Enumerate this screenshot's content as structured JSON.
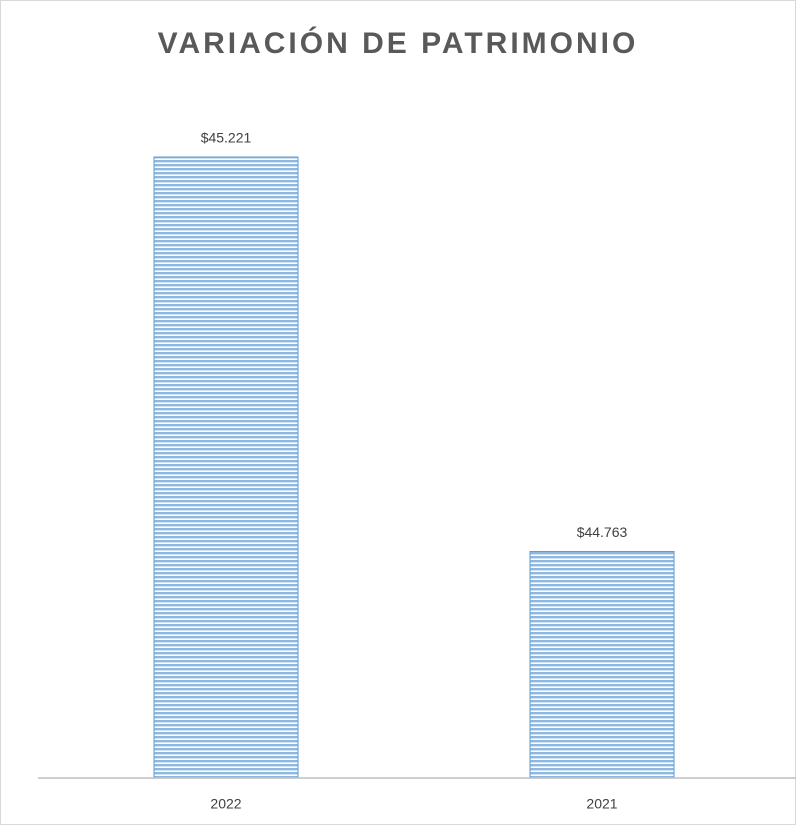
{
  "chart_data": {
    "type": "bar",
    "title": "VARIACIÓN DE PATRIMONIO",
    "categories": [
      "2022",
      "2021"
    ],
    "values": [
      45221,
      44763
    ],
    "value_labels": [
      "$45.221",
      "$44.763"
    ],
    "color": "#5b9bd5",
    "ylim": [
      44500,
      45300
    ]
  }
}
